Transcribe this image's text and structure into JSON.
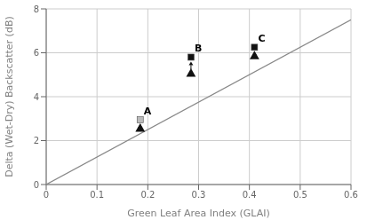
{
  "chart_data": {
    "type": "scatter",
    "title": "",
    "xlabel": "Green Leaf Area Index (GLAI)",
    "ylabel": "Delta (Wet-Dry) Backscatter (dB)",
    "xlim": [
      0,
      0.6
    ],
    "ylim": [
      0,
      8
    ],
    "xticks": [
      0,
      0.1,
      0.2,
      0.3,
      0.4,
      0.5,
      0.6
    ],
    "yticks": [
      0,
      2,
      4,
      6,
      8
    ],
    "grid": true,
    "series": [
      {
        "type": "line",
        "color": "#888888",
        "x": [
          0,
          0.6
        ],
        "values": [
          0,
          7.5
        ]
      },
      {
        "type": "scatter",
        "marker": "triangle",
        "color": "#111111",
        "x": [
          0.185,
          0.285,
          0.41
        ],
        "values": [
          2.55,
          5.05,
          5.85
        ]
      },
      {
        "type": "scatter",
        "marker": "square",
        "colors": [
          "#bbbbbb",
          "#111111",
          "#111111"
        ],
        "x": [
          0.185,
          0.285,
          0.41
        ],
        "values": [
          2.95,
          5.8,
          6.25
        ]
      }
    ],
    "annotations": [
      {
        "text": "A",
        "x": 0.185,
        "y": 2.95
      },
      {
        "text": "B",
        "x": 0.285,
        "y": 5.8
      },
      {
        "text": "C",
        "x": 0.41,
        "y": 6.25
      }
    ]
  }
}
